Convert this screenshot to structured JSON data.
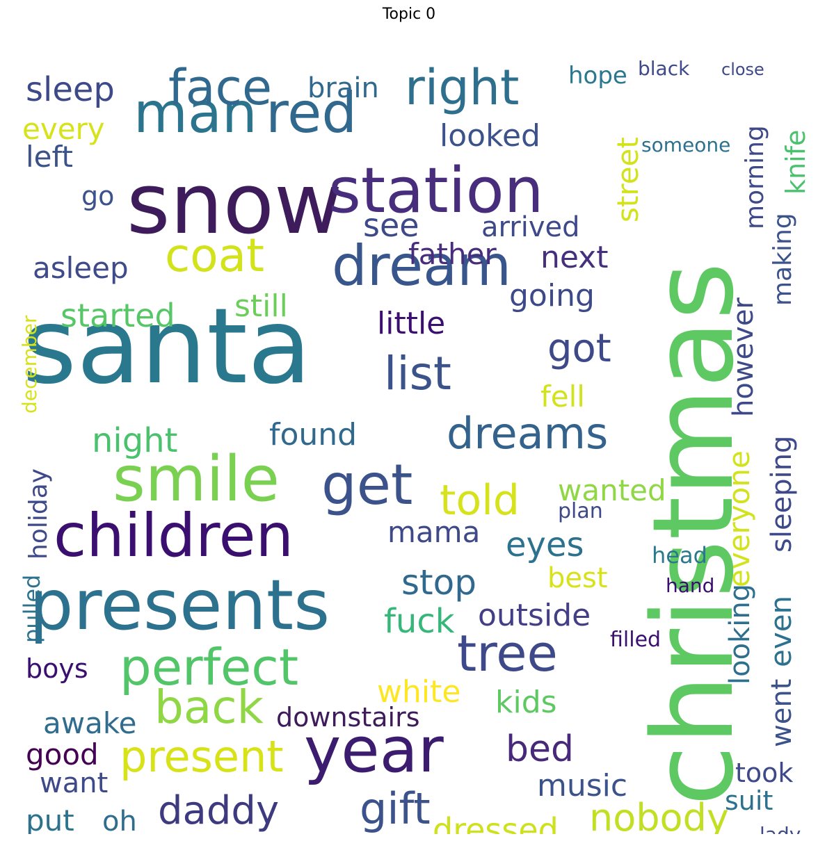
{
  "title": "Topic 0",
  "words": [
    {
      "text": "santa",
      "color": "#2a788e"
    },
    {
      "text": "christmas",
      "color": "#5ec962"
    },
    {
      "text": "snow",
      "color": "#3e1b5b"
    },
    {
      "text": "station",
      "color": "#472d7b"
    },
    {
      "text": "presents",
      "color": "#2c728e"
    },
    {
      "text": "children",
      "color": "#3b0f70"
    },
    {
      "text": "year",
      "color": "#3b1c6e"
    },
    {
      "text": "smile",
      "color": "#7ad151"
    },
    {
      "text": "man",
      "color": "#2b748e"
    },
    {
      "text": "face",
      "color": "#31688e"
    },
    {
      "text": "red",
      "color": "#31688e"
    },
    {
      "text": "right",
      "color": "#2e6f8e"
    },
    {
      "text": "dream",
      "color": "#39568c"
    },
    {
      "text": "coat",
      "color": "#d2e21b"
    },
    {
      "text": "get",
      "color": "#3b528b"
    },
    {
      "text": "perfect",
      "color": "#52c569"
    },
    {
      "text": "tree",
      "color": "#3e4989"
    },
    {
      "text": "dreams",
      "color": "#33638d"
    },
    {
      "text": "list",
      "color": "#3b528b"
    },
    {
      "text": "told",
      "color": "#d6e21a"
    },
    {
      "text": "back",
      "color": "#8fd744"
    },
    {
      "text": "gift",
      "color": "#3b528b"
    },
    {
      "text": "present",
      "color": "#d8e219"
    },
    {
      "text": "daddy",
      "color": "#3e3a80"
    },
    {
      "text": "dressed",
      "color": "#cde11d"
    },
    {
      "text": "nobody",
      "color": "#c2df23"
    },
    {
      "text": "bed",
      "color": "#482878"
    },
    {
      "text": "music",
      "color": "#3b528b"
    },
    {
      "text": "white",
      "color": "#fde725"
    },
    {
      "text": "kids",
      "color": "#5ec962"
    },
    {
      "text": "stop",
      "color": "#30688e"
    },
    {
      "text": "fuck",
      "color": "#35b779"
    },
    {
      "text": "outside",
      "color": "#433e85"
    },
    {
      "text": "best",
      "color": "#d8e219"
    },
    {
      "text": "eyes",
      "color": "#2c728e"
    },
    {
      "text": "mama",
      "color": "#3e4989"
    },
    {
      "text": "found",
      "color": "#30688e"
    },
    {
      "text": "night",
      "color": "#4ac16d"
    },
    {
      "text": "going",
      "color": "#3e4989"
    },
    {
      "text": "father",
      "color": "#472d7b"
    },
    {
      "text": "next",
      "color": "#46307e"
    },
    {
      "text": "little",
      "color": "#3b0f70"
    },
    {
      "text": "started",
      "color": "#56c667"
    },
    {
      "text": "still",
      "color": "#6ccd5a"
    },
    {
      "text": "asleep",
      "color": "#3e4a89"
    },
    {
      "text": "see",
      "color": "#3e4989"
    },
    {
      "text": "arrived",
      "color": "#3e4989"
    },
    {
      "text": "looked",
      "color": "#3b528b"
    },
    {
      "text": "brain",
      "color": "#31688e"
    },
    {
      "text": "sleep",
      "color": "#3e4989"
    },
    {
      "text": "every",
      "color": "#d6e21a"
    },
    {
      "text": "left",
      "color": "#3b528b"
    },
    {
      "text": "go",
      "color": "#3b528b"
    },
    {
      "text": "got",
      "color": "#3e4989"
    },
    {
      "text": "fell",
      "color": "#d2e21b"
    },
    {
      "text": "wanted",
      "color": "#8fd744"
    },
    {
      "text": "awake",
      "color": "#2f6c8e"
    },
    {
      "text": "good",
      "color": "#440154"
    },
    {
      "text": "want",
      "color": "#3e4989"
    },
    {
      "text": "put",
      "color": "#2c728e"
    },
    {
      "text": "oh",
      "color": "#2f6c8e"
    },
    {
      "text": "boys",
      "color": "#3b0f70"
    },
    {
      "text": "downstairs",
      "color": "#3e1b5b"
    },
    {
      "text": "street",
      "color": "#d2e21b"
    },
    {
      "text": "morning",
      "color": "#3e4989"
    },
    {
      "text": "knife",
      "color": "#4ac16d"
    },
    {
      "text": "making",
      "color": "#3b528b"
    },
    {
      "text": "however",
      "color": "#3e4989"
    },
    {
      "text": "sleeping",
      "color": "#3e4989"
    },
    {
      "text": "everyone",
      "color": "#d2e21b"
    },
    {
      "text": "even",
      "color": "#2c728e"
    },
    {
      "text": "looking",
      "color": "#2e6f8e"
    },
    {
      "text": "went",
      "color": "#3b528b"
    },
    {
      "text": "took",
      "color": "#3e4989"
    },
    {
      "text": "suit",
      "color": "#2c728e"
    },
    {
      "text": "lady",
      "color": "#3e4989"
    },
    {
      "text": "hope",
      "color": "#2a788e"
    },
    {
      "text": "black",
      "color": "#3e4989"
    },
    {
      "text": "close",
      "color": "#3e4989"
    },
    {
      "text": "someone",
      "color": "#2c728e"
    },
    {
      "text": "head",
      "color": "#2a788e"
    },
    {
      "text": "hand",
      "color": "#3b0f70"
    },
    {
      "text": "filled",
      "color": "#3b0f70"
    },
    {
      "text": "plan",
      "color": "#3e4989"
    },
    {
      "text": "holiday",
      "color": "#3e4989"
    },
    {
      "text": "pulled",
      "color": "#2c728e"
    },
    {
      "text": "december",
      "color": "#d6e21a"
    }
  ]
}
